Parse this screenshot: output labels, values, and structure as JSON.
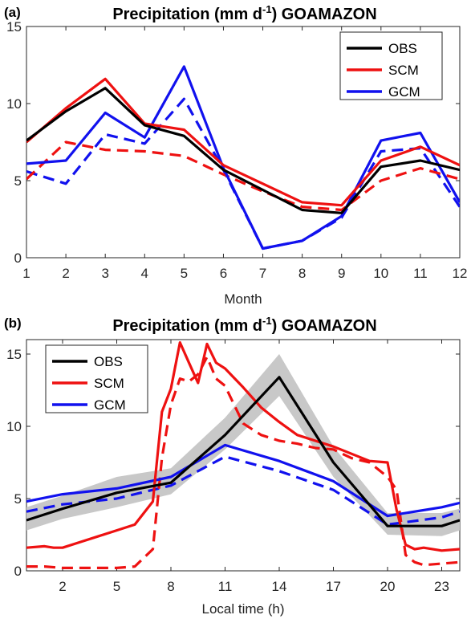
{
  "chart_data": [
    {
      "type": "line",
      "panel_label": "(a)",
      "title_main": "Precipitation (mm d",
      "title_sup": "-1",
      "title_end": ") GOAMAZON",
      "xlabel": "Month",
      "ylabel": "",
      "xlim": [
        1,
        12
      ],
      "ylim": [
        0,
        15
      ],
      "xticks": [
        "1",
        "2",
        "3",
        "4",
        "5",
        "6",
        "7",
        "8",
        "9",
        "10",
        "11",
        "12"
      ],
      "yticks": [
        "0",
        "5",
        "10",
        "15"
      ],
      "legend_position": "top-right",
      "x": [
        1,
        2,
        3,
        4,
        5,
        6,
        7,
        8,
        9,
        10,
        11,
        12
      ],
      "series": [
        {
          "name": "OBS",
          "color": "#000000",
          "style": "solid",
          "values": [
            7.6,
            9.5,
            11.0,
            8.6,
            7.9,
            5.7,
            4.4,
            3.1,
            2.9,
            5.9,
            6.3,
            5.7
          ]
        },
        {
          "name": "SCM",
          "color": "#ee1111",
          "style": "solid",
          "values": [
            7.5,
            9.7,
            11.6,
            8.7,
            8.3,
            6.0,
            4.8,
            3.6,
            3.4,
            6.3,
            7.2,
            6.0
          ]
        },
        {
          "name": "GCM",
          "color": "#1111ee",
          "style": "solid",
          "values": [
            6.1,
            6.3,
            9.4,
            7.8,
            12.4,
            5.8,
            0.6,
            1.1,
            2.7,
            7.6,
            8.1,
            3.6
          ]
        },
        {
          "name": "",
          "color": "#ee1111",
          "style": "dashed",
          "values": [
            5.1,
            7.5,
            7.0,
            6.9,
            6.6,
            5.4,
            4.3,
            3.3,
            3.1,
            5.0,
            5.8,
            5.1
          ]
        },
        {
          "name": "",
          "color": "#1111ee",
          "style": "dashed",
          "values": [
            5.6,
            4.8,
            8.0,
            7.4,
            10.3,
            5.7,
            0.6,
            1.1,
            2.6,
            6.9,
            7.1,
            3.3
          ]
        }
      ]
    },
    {
      "type": "line",
      "panel_label": "(b)",
      "title_main": "Precipitation (mm d",
      "title_sup": "-1",
      "title_end": ") GOAMAZON",
      "xlabel": "Local time (h)",
      "ylabel": "",
      "xlim": [
        0,
        24
      ],
      "ylim": [
        0,
        16
      ],
      "xticks": [
        "2",
        "5",
        "8",
        "11",
        "14",
        "17",
        "20",
        "23"
      ],
      "xtick_values": [
        2,
        5,
        8,
        11,
        14,
        17,
        20,
        23
      ],
      "yticks": [
        "0",
        "5",
        "10",
        "15"
      ],
      "legend_position": "top-left",
      "obs_spread": {
        "x": [
          0,
          2,
          5,
          8,
          11,
          14,
          17,
          20,
          23,
          24
        ],
        "lower": [
          2.8,
          3.6,
          4.4,
          5.3,
          8.4,
          12.1,
          6.5,
          2.5,
          2.4,
          2.8
        ],
        "upper": [
          4.4,
          5.2,
          6.5,
          7.1,
          10.6,
          15.0,
          8.6,
          4.0,
          4.0,
          4.3
        ]
      },
      "series": [
        {
          "name": "OBS",
          "color": "#000000",
          "style": "solid",
          "x": [
            0,
            2,
            5,
            8,
            11,
            14,
            17,
            20,
            23,
            24
          ],
          "values": [
            3.5,
            4.3,
            5.4,
            6.1,
            9.4,
            13.4,
            7.5,
            3.1,
            3.1,
            3.5
          ]
        },
        {
          "name": "SCM",
          "color": "#ee1111",
          "style": "solid",
          "x": [
            0,
            1,
            1.5,
            2,
            3,
            4,
            5,
            6,
            7,
            7.5,
            8,
            8.5,
            9,
            9.5,
            10,
            10.5,
            11,
            12,
            13,
            14,
            15,
            16,
            17,
            18,
            19,
            20,
            20.5,
            21,
            21.5,
            22,
            23,
            24
          ],
          "values": [
            1.6,
            1.7,
            1.6,
            1.6,
            2.0,
            2.4,
            2.8,
            3.2,
            4.8,
            11.0,
            12.6,
            15.8,
            14.4,
            13.0,
            15.7,
            14.4,
            14.0,
            12.7,
            11.3,
            10.3,
            9.4,
            9.0,
            8.6,
            8.1,
            7.6,
            7.5,
            4.2,
            1.8,
            1.5,
            1.6,
            1.4,
            1.5
          ]
        },
        {
          "name": "GCM",
          "color": "#1111ee",
          "style": "solid",
          "x": [
            0,
            2,
            5,
            8,
            11,
            14,
            17,
            20,
            23,
            24
          ],
          "values": [
            4.8,
            5.3,
            5.7,
            6.5,
            8.7,
            7.6,
            6.2,
            3.8,
            4.4,
            4.7
          ]
        },
        {
          "name": "",
          "color": "#ee1111",
          "style": "dashed",
          "x": [
            0,
            1,
            2,
            3,
            4,
            5,
            6,
            7,
            7.5,
            8,
            8.5,
            9,
            9.5,
            10,
            10.5,
            11,
            12,
            13,
            14,
            15,
            16,
            17,
            18,
            19,
            20,
            20.5,
            21,
            21.5,
            22,
            23,
            24
          ],
          "values": [
            0.3,
            0.3,
            0.2,
            0.2,
            0.2,
            0.2,
            0.3,
            1.5,
            7.8,
            11.5,
            13.3,
            13.1,
            13.6,
            14.8,
            13.3,
            12.8,
            10.2,
            9.4,
            9.0,
            8.8,
            8.5,
            8.4,
            7.8,
            7.5,
            6.5,
            5.6,
            1.1,
            0.6,
            0.4,
            0.5,
            0.6
          ]
        },
        {
          "name": "",
          "color": "#1111ee",
          "style": "dashed",
          "x": [
            0,
            2,
            5,
            8,
            11,
            14,
            17,
            20,
            23,
            24
          ],
          "values": [
            4.1,
            4.6,
            5.0,
            5.9,
            7.9,
            6.9,
            5.6,
            3.2,
            3.7,
            4.1
          ]
        }
      ]
    }
  ]
}
